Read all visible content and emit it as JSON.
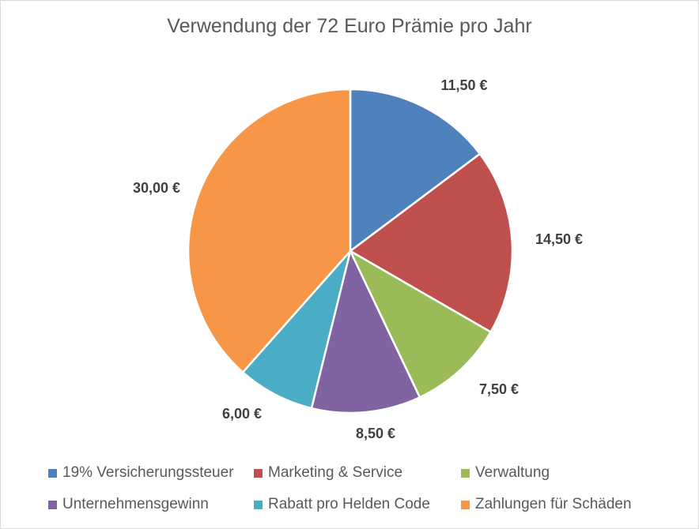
{
  "chart_data": {
    "type": "pie",
    "title": "Verwendung der 72 Euro Prämie pro Jahr",
    "start_angle_deg": 0,
    "direction": "clockwise",
    "legend_position": "bottom",
    "slices": [
      {
        "name": "19% Versicherungssteuer",
        "value": 11.5,
        "label": "11,50 €",
        "color": "#4f81bd"
      },
      {
        "name": "Marketing & Service",
        "value": 14.5,
        "label": "14,50 €",
        "color": "#c0504d"
      },
      {
        "name": "Verwaltung",
        "value": 7.5,
        "label": "7,50 €",
        "color": "#9bbb59"
      },
      {
        "name": "Unternehmensgewinn",
        "value": 8.5,
        "label": "8,50 €",
        "color": "#8064a2"
      },
      {
        "name": "Rabatt pro Helden Code",
        "value": 6.0,
        "label": "6,00 €",
        "color": "#4bacc6"
      },
      {
        "name": "Zahlungen für Schäden",
        "value": 30.0,
        "label": "30,00 €",
        "color": "#f79646"
      }
    ]
  }
}
